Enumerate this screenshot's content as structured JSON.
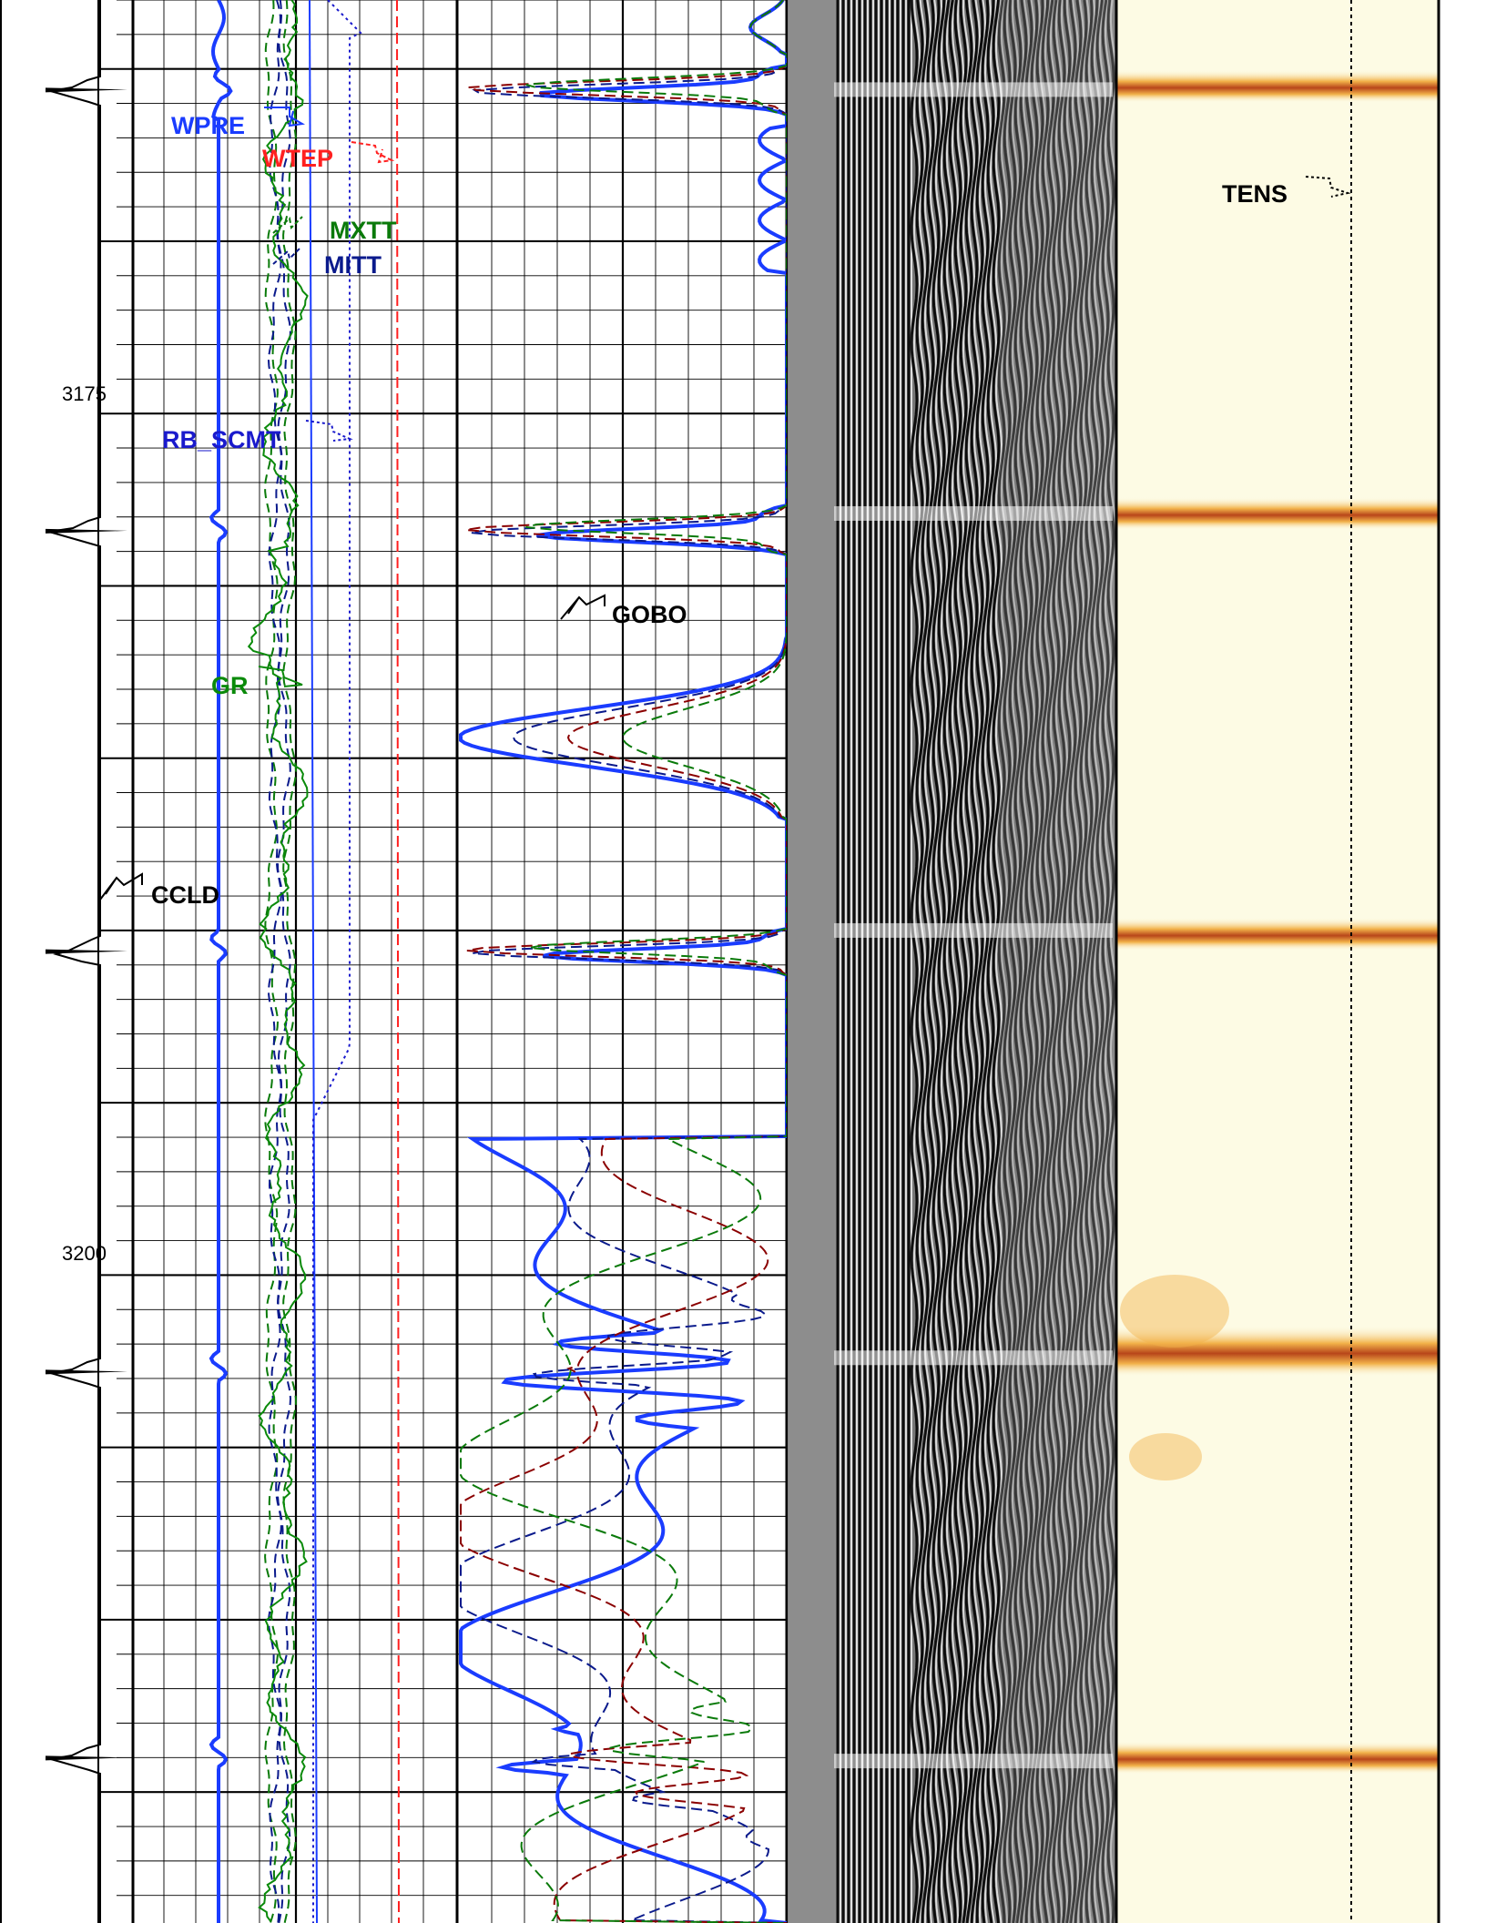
{
  "chart_data": {
    "type": "line",
    "depth_labels": [
      "3175",
      "3200"
    ],
    "depth_range": [
      3163.0,
      3218.8
    ],
    "curves": [
      {
        "name": "WPRE",
        "color": "#1a3cff",
        "style": "solid"
      },
      {
        "name": "WTEP",
        "color": "#ff0000",
        "style": "dashed"
      },
      {
        "name": "MXTT",
        "color": "#0a7a0a",
        "style": "dashed"
      },
      {
        "name": "MITT",
        "color": "#0a1a8c",
        "style": "dashed"
      },
      {
        "name": "RB_SCMT",
        "color": "#1a1acc",
        "style": "dotted"
      },
      {
        "name": "GR",
        "color": "#0a8a0a",
        "style": "solid"
      },
      {
        "name": "CCLD",
        "color": "#000000",
        "style": "solid"
      },
      {
        "name": "GOBO",
        "color": "#000000",
        "style": "solid"
      },
      {
        "name": "TENS",
        "color": "#000000",
        "style": "dotted"
      }
    ],
    "collar_depths": [
      3165.6,
      3178.4,
      3190.6,
      3202.8,
      3214.0
    ],
    "waveform_ring_depths": [
      3165.6,
      3177.9,
      3190.0,
      3202.4,
      3214.1
    ],
    "cement_bond_bright_depths": [
      3165.5,
      3177.9,
      3190.1,
      3202.2,
      3214.0
    ],
    "colors": {
      "grid": "#000000",
      "map_background": "#fdfbe4",
      "map_hot": "#c8501e",
      "waveform": "#888888"
    }
  },
  "labels": {
    "wpre": "WPRE",
    "wtep": "WTEP",
    "mxtt": "MXTT",
    "mitt": "MITT",
    "rb_scmt": "RB_SCMT",
    "gr": "GR",
    "ccld": "CCLD",
    "gobo": "GOBO",
    "tens": "TENS"
  }
}
